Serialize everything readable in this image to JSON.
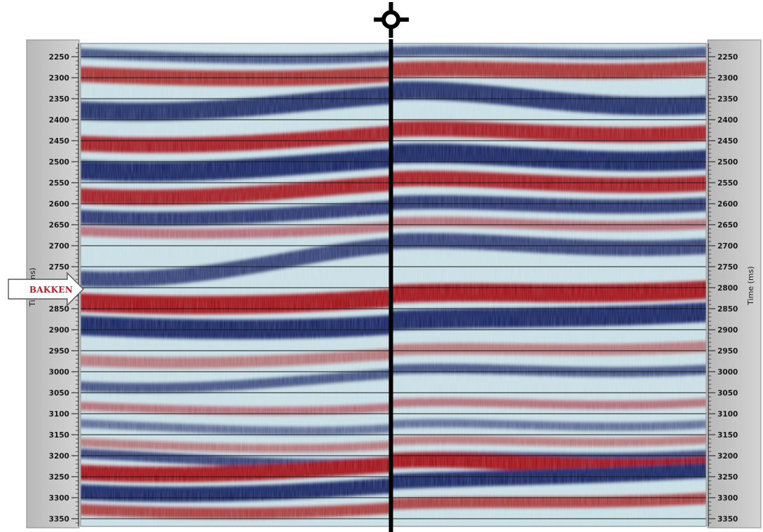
{
  "section": {
    "time_axis_title": "Time (ms)",
    "time_axis_title_left_partial": "Time (ms)",
    "time_ticks": [
      2250,
      2300,
      2350,
      2400,
      2450,
      2500,
      2550,
      2600,
      2650,
      2700,
      2750,
      2800,
      2850,
      2900,
      2950,
      3000,
      3050,
      3100,
      3150,
      3200,
      3250,
      3300,
      3350
    ],
    "time_range_ms": [
      2220,
      3365
    ],
    "horizon_marker_label": "BAKKEN",
    "horizon_marker_time_ms": 2808,
    "well_symbol": "well-location-icon",
    "colors": {
      "trough": "#1c2a66",
      "peak": "#a3171b",
      "background": "#c7dde3",
      "axis_panel": "#c4c4c4",
      "well_line": "#000000",
      "marker_text": "#d1141b"
    }
  }
}
